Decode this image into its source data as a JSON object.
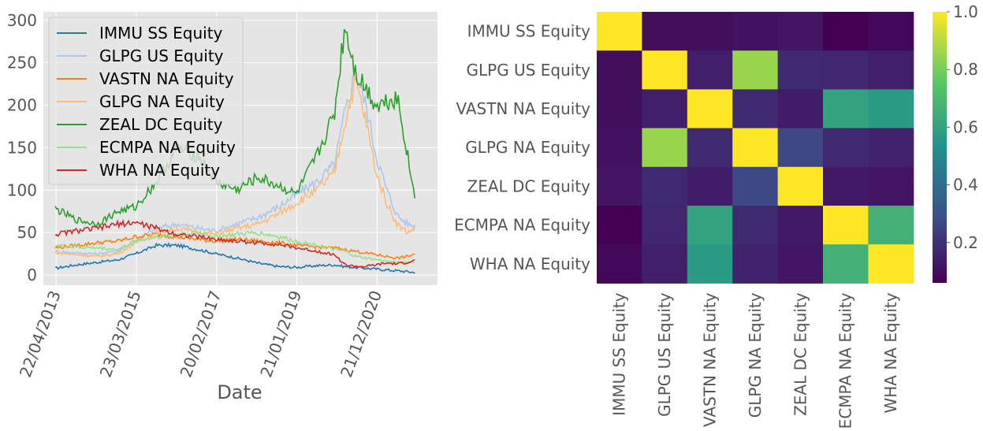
{
  "chart_data": [
    {
      "type": "line",
      "xlabel": "Date",
      "ylabel": "",
      "ylim": [
        -12,
        310
      ],
      "yticks": [
        0,
        50,
        100,
        150,
        200,
        250,
        300
      ],
      "xticks": [
        "22/04/2013",
        "23/03/2015",
        "20/02/2017",
        "21/01/2019",
        "21/12/2020"
      ],
      "grid": true,
      "legend_position": "top-left",
      "x": [
        "2013-04",
        "2013-10",
        "2014-04",
        "2014-10",
        "2015-03",
        "2015-09",
        "2016-03",
        "2016-09",
        "2017-02",
        "2017-08",
        "2018-02",
        "2018-08",
        "2019-01",
        "2019-07",
        "2019-12",
        "2020-03",
        "2020-06",
        "2020-09",
        "2020-12",
        "2021-03",
        "2021-06",
        "2021-09",
        "2021-11"
      ],
      "series": [
        {
          "name": "IMMU SS Equity",
          "color": "#1f77b4",
          "values": [
            8,
            12,
            15,
            18,
            25,
            35,
            35,
            30,
            25,
            20,
            14,
            10,
            9,
            11,
            12,
            10,
            9,
            8,
            7,
            6,
            5,
            4,
            3
          ]
        },
        {
          "name": "GLPG US Equity",
          "color": "#aec7e8",
          "values": [
            28,
            26,
            25,
            28,
            40,
            55,
            60,
            55,
            52,
            60,
            68,
            80,
            95,
            110,
            130,
            190,
            240,
            200,
            140,
            100,
            70,
            60,
            58
          ]
        },
        {
          "name": "VASTN NA Equity",
          "color": "#ff7f0e",
          "values": [
            32,
            35,
            38,
            40,
            45,
            48,
            45,
            42,
            40,
            42,
            40,
            38,
            35,
            33,
            32,
            30,
            28,
            26,
            24,
            22,
            20,
            22,
            25
          ]
        },
        {
          "name": "GLPG NA Equity",
          "color": "#ffbb78",
          "values": [
            26,
            24,
            22,
            25,
            38,
            50,
            55,
            50,
            48,
            55,
            60,
            72,
            85,
            100,
            120,
            180,
            230,
            180,
            120,
            85,
            60,
            50,
            55
          ]
        },
        {
          "name": "ZEAL DC Equity",
          "color": "#2ca02c",
          "values": [
            78,
            65,
            60,
            75,
            80,
            110,
            150,
            140,
            110,
            100,
            115,
            105,
            95,
            140,
            190,
            295,
            240,
            220,
            200,
            205,
            210,
            140,
            90
          ]
        },
        {
          "name": "ECMPA NA Equity",
          "color": "#98df8a",
          "values": [
            35,
            33,
            32,
            30,
            40,
            45,
            48,
            50,
            45,
            48,
            50,
            45,
            40,
            35,
            30,
            28,
            22,
            20,
            18,
            16,
            15,
            15,
            16
          ]
        },
        {
          "name": "WHA NA Equity",
          "color": "#d62728",
          "values": [
            48,
            52,
            55,
            60,
            62,
            55,
            48,
            45,
            42,
            40,
            38,
            36,
            32,
            28,
            24,
            12,
            10,
            10,
            12,
            14,
            13,
            15,
            17
          ]
        }
      ]
    },
    {
      "type": "heatmap",
      "labels": [
        "IMMU SS Equity",
        "GLPG US Equity",
        "VASTN NA Equity",
        "GLPG NA Equity",
        "ZEAL DC Equity",
        "ECMPA NA Equity",
        "WHA NA Equity"
      ],
      "matrix": [
        [
          1.0,
          0.1,
          0.1,
          0.11,
          0.12,
          0.06,
          0.08
        ],
        [
          0.1,
          1.0,
          0.15,
          0.85,
          0.18,
          0.17,
          0.15
        ],
        [
          0.1,
          0.15,
          1.0,
          0.18,
          0.14,
          0.6,
          0.57
        ],
        [
          0.11,
          0.85,
          0.18,
          1.0,
          0.27,
          0.18,
          0.16
        ],
        [
          0.12,
          0.18,
          0.14,
          0.27,
          1.0,
          0.13,
          0.12
        ],
        [
          0.06,
          0.17,
          0.6,
          0.18,
          0.13,
          1.0,
          0.66
        ],
        [
          0.08,
          0.15,
          0.57,
          0.16,
          0.12,
          0.66,
          1.0
        ]
      ],
      "colorbar_ticks": [
        "0.2",
        "0.4",
        "0.6",
        "0.8",
        "1.0"
      ],
      "colorbar_range": [
        0.06,
        1.0
      ],
      "colormap": "viridis"
    }
  ]
}
